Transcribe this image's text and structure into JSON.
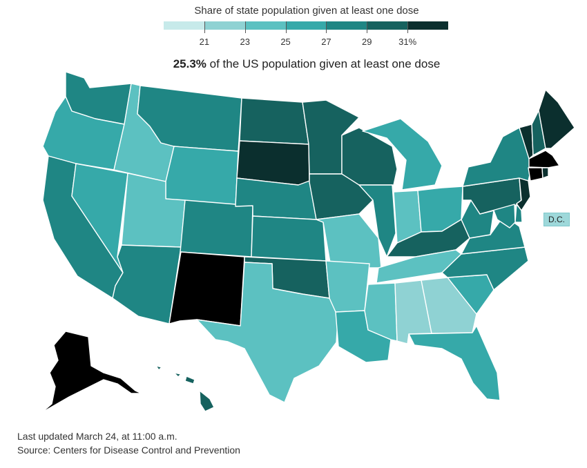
{
  "legend": {
    "title": "Share of state population given at least one dose",
    "tick_labels": [
      "21",
      "23",
      "25",
      "27",
      "29",
      "31%"
    ],
    "colors": [
      "#c7eaea",
      "#8fd2d3",
      "#5cc1c1",
      "#36a9a9",
      "#1f8684",
      "#16625f",
      "#0b2f2e"
    ]
  },
  "headline": {
    "value": "25.3%",
    "text": " of the US population given at least one dose"
  },
  "dc_label": "D.C.",
  "footer": {
    "updated": "Last updated March 24, at 11:00 a.m.",
    "source": "Source: Centers for Disease Control and Prevention"
  },
  "states": {
    "WA": 4,
    "OR": 3,
    "ID": 2,
    "MT": 4,
    "WY": 3,
    "CA": 4,
    "NV": 3,
    "UT": 2,
    "AZ": 4,
    "CO": 4,
    "NM": 7,
    "ND": 5,
    "SD": 6,
    "NE": 4,
    "KS": 4,
    "OK": 5,
    "TX": 2,
    "MN": 5,
    "IA": 5,
    "MO": 2,
    "AR": 2,
    "LA": 3,
    "WI": 5,
    "IL": 4,
    "MI": 3,
    "IN": 2,
    "OH": 3,
    "KY": 5,
    "TN": 2,
    "MS": 2,
    "AL": 1,
    "GA": 1,
    "FL": 3,
    "SC": 3,
    "NC": 4,
    "VA": 4,
    "WV": 4,
    "PA": 5,
    "NY": 4,
    "VT": 6,
    "NH": 5,
    "ME": 6,
    "MA": 7,
    "CT": 7,
    "RI": 6,
    "NJ": 6,
    "DE": 4,
    "MD": 4,
    "AK": 7,
    "HI": 5,
    "DC": 2
  }
}
